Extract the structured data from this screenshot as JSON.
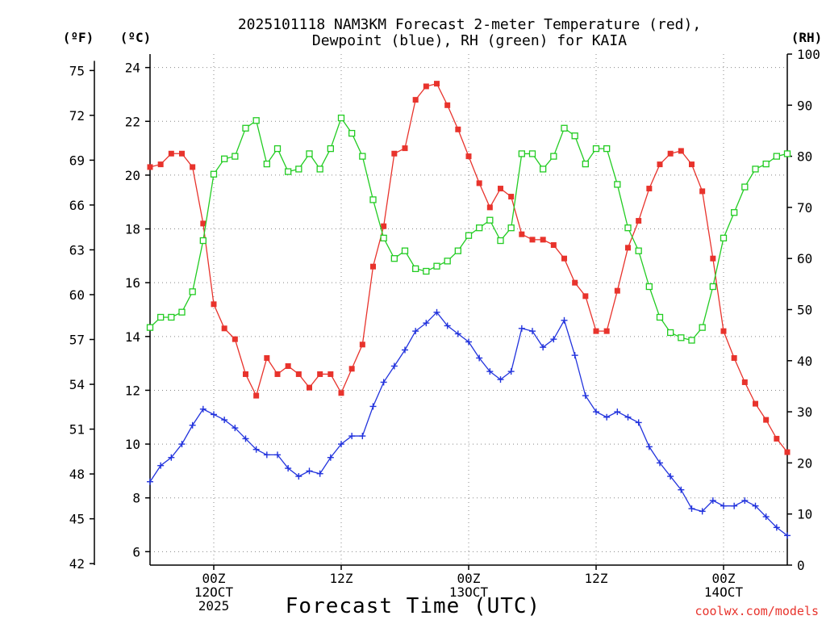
{
  "chart_data": {
    "type": "line",
    "title": [
      "2025101118 NAM3KM Forecast 2-meter Temperature (red),",
      "Dewpoint (blue), RH (green) for KAIA"
    ],
    "xlabel": "Forecast Time (UTC)",
    "credit": "coolwx.com/models",
    "left_axis_unit_f": "(ºF)",
    "left_axis_unit_c": "(ºC)",
    "right_axis_unit": "(RH)",
    "x_hours": [
      0,
      1,
      2,
      3,
      4,
      5,
      6,
      7,
      8,
      9,
      10,
      11,
      12,
      13,
      14,
      15,
      16,
      17,
      18,
      19,
      20,
      21,
      22,
      23,
      24,
      25,
      26,
      27,
      28,
      29,
      30,
      31,
      32,
      33,
      34,
      35,
      36,
      37,
      38,
      39,
      40,
      41,
      42,
      43,
      44,
      45,
      46,
      47,
      48,
      49,
      50,
      51,
      52,
      53,
      54,
      55,
      56,
      57,
      58,
      59,
      60
    ],
    "xlim": [
      0,
      60
    ],
    "x_ticks": [
      {
        "hour": 6,
        "lines": [
          "00Z",
          "12OCT",
          "2025"
        ]
      },
      {
        "hour": 18,
        "lines": [
          "12Z"
        ]
      },
      {
        "hour": 30,
        "lines": [
          "00Z",
          "13OCT"
        ]
      },
      {
        "hour": 42,
        "lines": [
          "12Z"
        ]
      },
      {
        "hour": 54,
        "lines": [
          "00Z",
          "14OCT"
        ]
      }
    ],
    "celsius_axis": {
      "range": [
        5.5,
        24.5
      ],
      "ticks": [
        6,
        8,
        10,
        12,
        14,
        16,
        18,
        20,
        22,
        24
      ]
    },
    "fahrenheit_ticks": [
      42,
      45,
      48,
      51,
      54,
      57,
      60,
      63,
      66,
      69,
      72,
      75
    ],
    "rh_axis": {
      "range": [
        0,
        100
      ],
      "ticks": [
        0,
        10,
        20,
        30,
        40,
        50,
        60,
        70,
        80,
        90,
        100
      ]
    },
    "series": [
      {
        "name": "2-meter Temperature",
        "unit": "C",
        "color": "#e8332c",
        "marker": "filled-square",
        "values": [
          20.3,
          20.4,
          20.8,
          20.8,
          20.3,
          18.2,
          15.2,
          14.3,
          13.9,
          12.6,
          11.8,
          13.2,
          12.6,
          12.9,
          12.6,
          12.1,
          12.6,
          12.6,
          11.9,
          12.8,
          13.7,
          16.6,
          18.1,
          20.8,
          21.0,
          22.8,
          23.3,
          23.4,
          22.6,
          21.7,
          20.7,
          19.7,
          18.8,
          19.5,
          19.2,
          17.8,
          17.6,
          17.6,
          17.4,
          16.9,
          16.0,
          15.5,
          14.2,
          14.2,
          15.7,
          17.3,
          18.3,
          19.5,
          20.4,
          20.8,
          20.9,
          20.4,
          19.4,
          16.9,
          14.2,
          13.2,
          12.3,
          11.5,
          10.9,
          10.2,
          9.7
        ]
      },
      {
        "name": "Dewpoint",
        "unit": "C",
        "color": "#2233dd",
        "marker": "plus",
        "values": [
          8.6,
          9.2,
          9.5,
          10.0,
          10.7,
          11.3,
          11.1,
          10.9,
          10.6,
          10.2,
          9.8,
          9.6,
          9.6,
          9.1,
          8.8,
          9.0,
          8.9,
          9.5,
          10.0,
          10.3,
          10.3,
          11.4,
          12.3,
          12.9,
          13.5,
          14.2,
          14.5,
          14.9,
          14.4,
          14.1,
          13.8,
          13.2,
          12.7,
          12.4,
          12.7,
          14.3,
          14.2,
          13.6,
          13.9,
          14.6,
          13.3,
          11.8,
          11.2,
          11.0,
          11.2,
          11.0,
          10.8,
          9.9,
          9.3,
          8.8,
          8.3,
          7.6,
          7.5,
          7.9,
          7.7,
          7.7,
          7.9,
          7.7,
          7.3,
          6.9,
          6.6
        ]
      },
      {
        "name": "RH",
        "unit": "%",
        "color": "#22cc22",
        "marker": "open-square",
        "values": [
          46.5,
          48.5,
          48.5,
          49.5,
          53.5,
          63.5,
          76.5,
          79.5,
          80.0,
          85.5,
          87.0,
          78.5,
          81.5,
          77.0,
          77.5,
          80.5,
          77.5,
          81.5,
          87.5,
          84.5,
          80.0,
          71.5,
          64.0,
          60.0,
          61.5,
          58.0,
          57.5,
          58.5,
          59.5,
          61.5,
          64.5,
          66.0,
          67.5,
          63.5,
          66.0,
          80.5,
          80.5,
          77.5,
          80.0,
          85.5,
          84.0,
          78.5,
          81.5,
          81.5,
          74.5,
          66.0,
          61.5,
          54.5,
          48.5,
          45.5,
          44.5,
          44.0,
          46.5,
          54.5,
          64.0,
          69.0,
          74.0,
          77.5,
          78.5,
          80.0,
          80.5
        ]
      }
    ]
  }
}
